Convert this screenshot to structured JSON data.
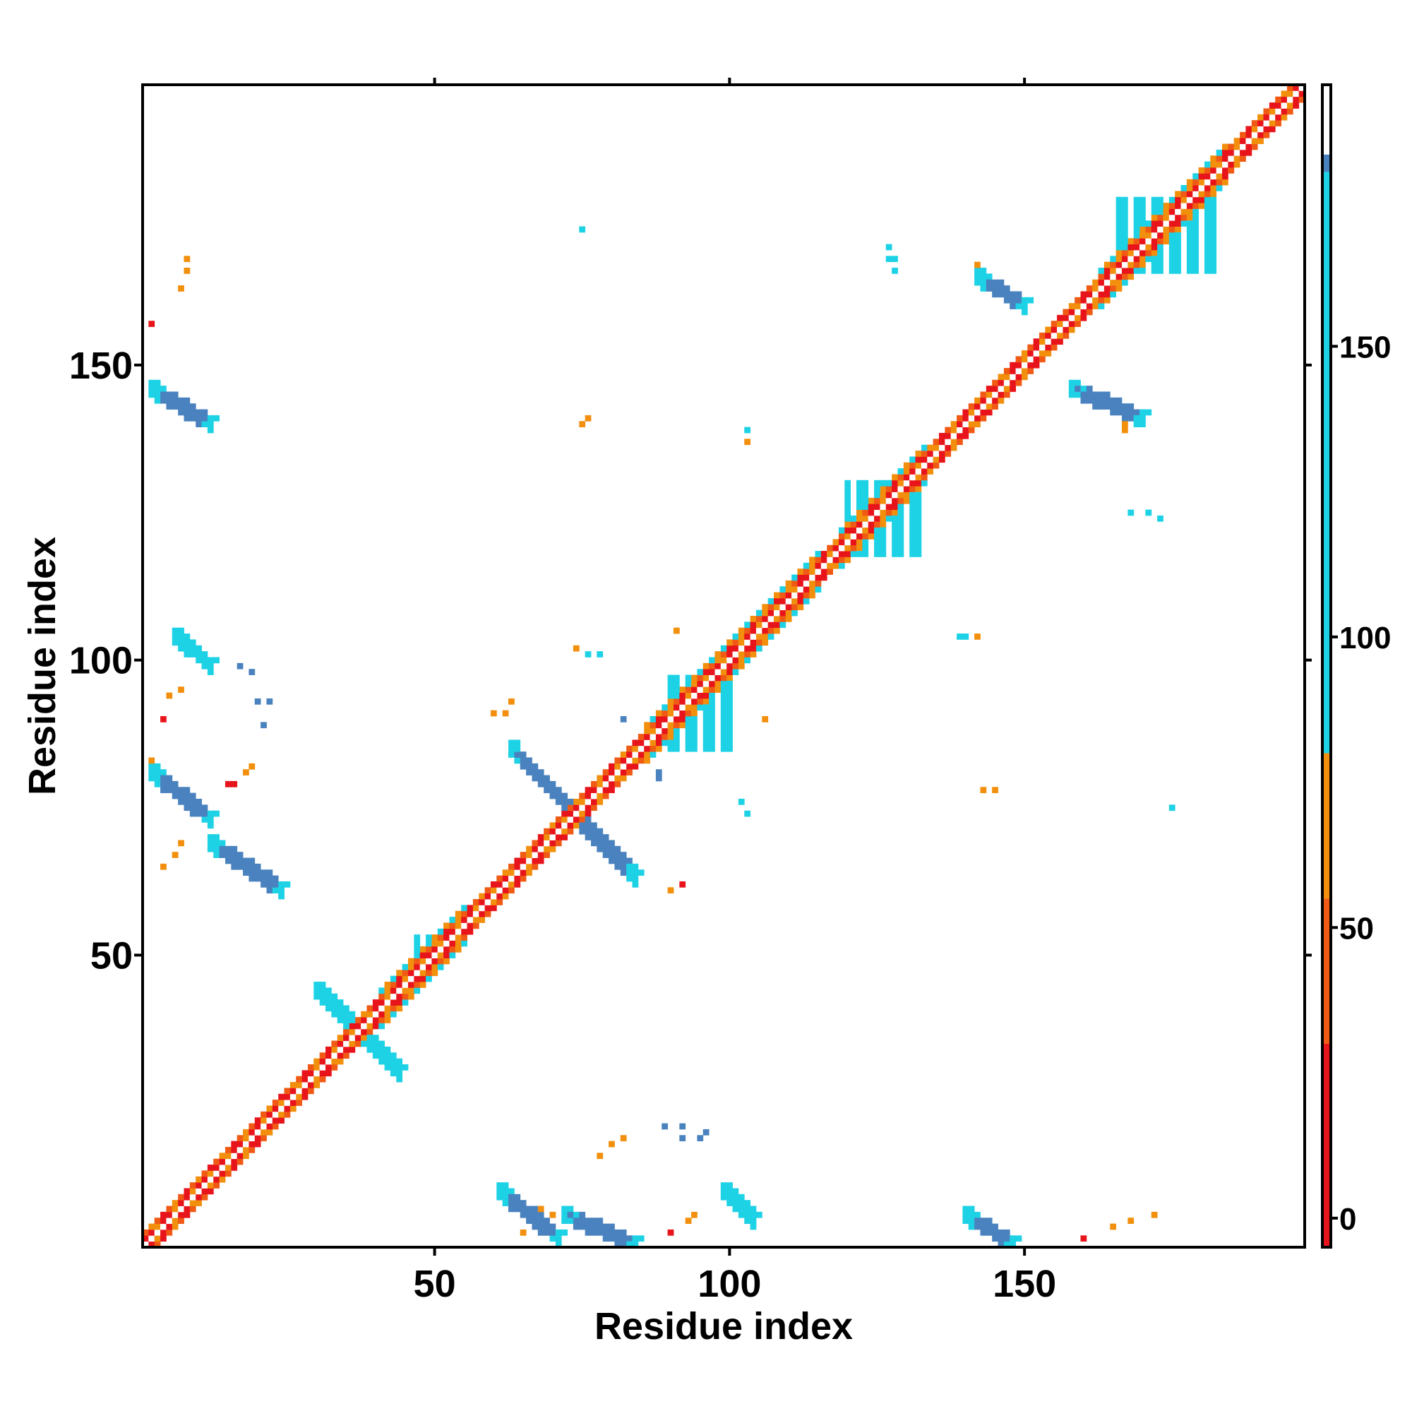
{
  "chart_data": {
    "type": "heatmap",
    "title": "",
    "xlabel": "Residue index",
    "ylabel": "Residue index",
    "xlim": [
      1,
      197
    ],
    "ylim": [
      1,
      197
    ],
    "x_ticks": [
      50,
      100,
      150
    ],
    "y_ticks": [
      50,
      100,
      150
    ],
    "x_tick_labels": [
      "50",
      "100",
      "150"
    ],
    "y_tick_labels": [
      "50",
      "100",
      "150"
    ],
    "grid": false,
    "legend": "right",
    "colorbar": {
      "ticks": [
        0,
        50,
        100,
        150
      ],
      "tick_labels": [
        "0",
        "50",
        "100",
        "150"
      ],
      "range": [
        -5,
        195
      ],
      "bands": [
        {
          "from": -5,
          "to": 30,
          "color": "#e8141b"
        },
        {
          "from": 30,
          "to": 55,
          "color": "#f05a14"
        },
        {
          "from": 55,
          "to": 80,
          "color": "#f28f0c"
        },
        {
          "from": 80,
          "to": 180,
          "color": "#1ed2e6"
        },
        {
          "from": 180,
          "to": 183,
          "color": "#4a82bf"
        },
        {
          "from": 183,
          "to": 195,
          "color": "#ffffff"
        }
      ]
    },
    "palette": {
      "red": "#e8141b",
      "orange_red": "#f05a14",
      "orange": "#f28f0c",
      "cyan": "#1ed2e6",
      "steel_blue": "#4a82bf"
    },
    "diagonal_band": {
      "from": 1,
      "to": 197
    },
    "regions": [
      {
        "i": [
          30,
          44
        ],
        "j": [
          44,
          30
        ],
        "color": "cyan",
        "kind": "antiparallel"
      },
      {
        "i": [
          61,
          71
        ],
        "j": [
          10,
          2
        ],
        "color": "steel_blue",
        "kind": "antiparallel"
      },
      {
        "i": [
          72,
          84
        ],
        "j": [
          6,
          1
        ],
        "color": "steel_blue",
        "kind": "antiparallel"
      },
      {
        "i": [
          63,
          84
        ],
        "j": [
          85,
          63
        ],
        "color": "steel_blue",
        "kind": "antiparallel"
      },
      {
        "i": [
          2,
          12
        ],
        "j": [
          146,
          140
        ],
        "color": "steel_blue",
        "kind": "antiparallel"
      },
      {
        "i": [
          2,
          12
        ],
        "j": [
          81,
          73
        ],
        "color": "steel_blue",
        "kind": "antiparallel"
      },
      {
        "i": [
          12,
          24
        ],
        "j": [
          69,
          61
        ],
        "color": "steel_blue",
        "kind": "antiparallel"
      },
      {
        "i": [
          142,
          150
        ],
        "j": [
          165,
          160
        ],
        "color": "steel_blue",
        "kind": "antiparallel"
      },
      {
        "i": [
          158,
          170
        ],
        "j": [
          146,
          141
        ],
        "color": "steel_blue",
        "kind": "antiparallel"
      },
      {
        "i": [
          140,
          148
        ],
        "j": [
          6,
          1
        ],
        "color": "steel_blue",
        "kind": "antiparallel"
      },
      {
        "i": [
          99,
          104
        ],
        "j": [
          10,
          5
        ],
        "color": "cyan",
        "kind": "antiparallel"
      },
      {
        "i": [
          6,
          12
        ],
        "j": [
          104,
          99
        ],
        "color": "cyan",
        "kind": "antiparallel"
      },
      {
        "i": [
          47,
          50
        ],
        "j": [
          53,
          47
        ],
        "color": "cyan",
        "kind": "block"
      },
      {
        "i": [
          89,
          101
        ],
        "j": [
          97,
          85
        ],
        "color": "cyan",
        "kind": "block"
      },
      {
        "i": [
          120,
          132
        ],
        "j": [
          130,
          118
        ],
        "color": "cyan",
        "kind": "block"
      },
      {
        "i": [
          166,
          182
        ],
        "j": [
          178,
          166
        ],
        "color": "cyan",
        "kind": "block"
      }
    ],
    "scattered_points": [
      {
        "x": 2,
        "y": 157,
        "color": "red"
      },
      {
        "x": 7,
        "y": 163,
        "color": "orange"
      },
      {
        "x": 8,
        "y": 166,
        "color": "orange"
      },
      {
        "x": 8,
        "y": 168,
        "color": "orange"
      },
      {
        "x": 75,
        "y": 140,
        "color": "orange"
      },
      {
        "x": 76,
        "y": 141,
        "color": "orange"
      },
      {
        "x": 75,
        "y": 173,
        "color": "cyan"
      },
      {
        "x": 103,
        "y": 139,
        "color": "cyan"
      },
      {
        "x": 103,
        "y": 137,
        "color": "orange"
      },
      {
        "x": 127,
        "y": 170,
        "color": "cyan"
      },
      {
        "x": 127,
        "y": 168,
        "color": "cyan"
      },
      {
        "x": 128,
        "y": 168,
        "color": "cyan"
      },
      {
        "x": 128,
        "y": 166,
        "color": "cyan"
      },
      {
        "x": 142,
        "y": 167,
        "color": "orange"
      },
      {
        "x": 167,
        "y": 140,
        "color": "orange"
      },
      {
        "x": 167,
        "y": 139,
        "color": "orange"
      },
      {
        "x": 168,
        "y": 125,
        "color": "cyan"
      },
      {
        "x": 171,
        "y": 125,
        "color": "cyan"
      },
      {
        "x": 173,
        "y": 124,
        "color": "cyan"
      },
      {
        "x": 74,
        "y": 102,
        "color": "orange"
      },
      {
        "x": 76,
        "y": 101,
        "color": "cyan"
      },
      {
        "x": 78,
        "y": 101,
        "color": "cyan"
      },
      {
        "x": 60,
        "y": 91,
        "color": "orange"
      },
      {
        "x": 62,
        "y": 91,
        "color": "orange"
      },
      {
        "x": 63,
        "y": 93,
        "color": "orange"
      },
      {
        "x": 82,
        "y": 90,
        "color": "steel_blue"
      },
      {
        "x": 88,
        "y": 80,
        "color": "steel_blue"
      },
      {
        "x": 88,
        "y": 81,
        "color": "steel_blue"
      },
      {
        "x": 103,
        "y": 74,
        "color": "cyan"
      },
      {
        "x": 102,
        "y": 76,
        "color": "cyan"
      },
      {
        "x": 106,
        "y": 90,
        "color": "orange"
      },
      {
        "x": 91,
        "y": 105,
        "color": "orange"
      },
      {
        "x": 139,
        "y": 104,
        "color": "cyan"
      },
      {
        "x": 140,
        "y": 104,
        "color": "cyan"
      },
      {
        "x": 142,
        "y": 104,
        "color": "orange"
      },
      {
        "x": 143,
        "y": 78,
        "color": "orange"
      },
      {
        "x": 145,
        "y": 78,
        "color": "orange"
      },
      {
        "x": 175,
        "y": 75,
        "color": "cyan"
      },
      {
        "x": 90,
        "y": 61,
        "color": "orange"
      },
      {
        "x": 92,
        "y": 62,
        "color": "red"
      },
      {
        "x": 17,
        "y": 99,
        "color": "steel_blue"
      },
      {
        "x": 19,
        "y": 98,
        "color": "steel_blue"
      },
      {
        "x": 20,
        "y": 93,
        "color": "steel_blue"
      },
      {
        "x": 22,
        "y": 93,
        "color": "steel_blue"
      },
      {
        "x": 21,
        "y": 89,
        "color": "steel_blue"
      },
      {
        "x": 5,
        "y": 94,
        "color": "orange"
      },
      {
        "x": 7,
        "y": 95,
        "color": "orange"
      },
      {
        "x": 4,
        "y": 90,
        "color": "red"
      },
      {
        "x": 15,
        "y": 79,
        "color": "red"
      },
      {
        "x": 16,
        "y": 79,
        "color": "red"
      },
      {
        "x": 18,
        "y": 81,
        "color": "orange"
      },
      {
        "x": 19,
        "y": 82,
        "color": "orange"
      },
      {
        "x": 2,
        "y": 83,
        "color": "orange"
      },
      {
        "x": 4,
        "y": 65,
        "color": "orange"
      },
      {
        "x": 6,
        "y": 67,
        "color": "orange"
      },
      {
        "x": 7,
        "y": 69,
        "color": "orange"
      },
      {
        "x": 11,
        "y": 74,
        "color": "orange"
      },
      {
        "x": 9,
        "y": 74,
        "color": "orange"
      },
      {
        "x": 89,
        "y": 21,
        "color": "steel_blue"
      },
      {
        "x": 92,
        "y": 21,
        "color": "steel_blue"
      },
      {
        "x": 92,
        "y": 19,
        "color": "steel_blue"
      },
      {
        "x": 95,
        "y": 19,
        "color": "steel_blue"
      },
      {
        "x": 96,
        "y": 20,
        "color": "steel_blue"
      },
      {
        "x": 82,
        "y": 19,
        "color": "orange"
      },
      {
        "x": 80,
        "y": 18,
        "color": "orange"
      },
      {
        "x": 78,
        "y": 16,
        "color": "orange"
      },
      {
        "x": 68,
        "y": 7,
        "color": "orange"
      },
      {
        "x": 70,
        "y": 6,
        "color": "orange"
      },
      {
        "x": 67,
        "y": 5,
        "color": "orange"
      },
      {
        "x": 65,
        "y": 3,
        "color": "orange"
      },
      {
        "x": 90,
        "y": 3,
        "color": "red"
      },
      {
        "x": 93,
        "y": 5,
        "color": "orange"
      },
      {
        "x": 94,
        "y": 6,
        "color": "orange"
      },
      {
        "x": 160,
        "y": 2,
        "color": "red"
      },
      {
        "x": 165,
        "y": 4,
        "color": "orange"
      },
      {
        "x": 168,
        "y": 5,
        "color": "orange"
      },
      {
        "x": 172,
        "y": 6,
        "color": "orange"
      },
      {
        "x": 84,
        "y": 2,
        "color": "orange"
      }
    ]
  }
}
